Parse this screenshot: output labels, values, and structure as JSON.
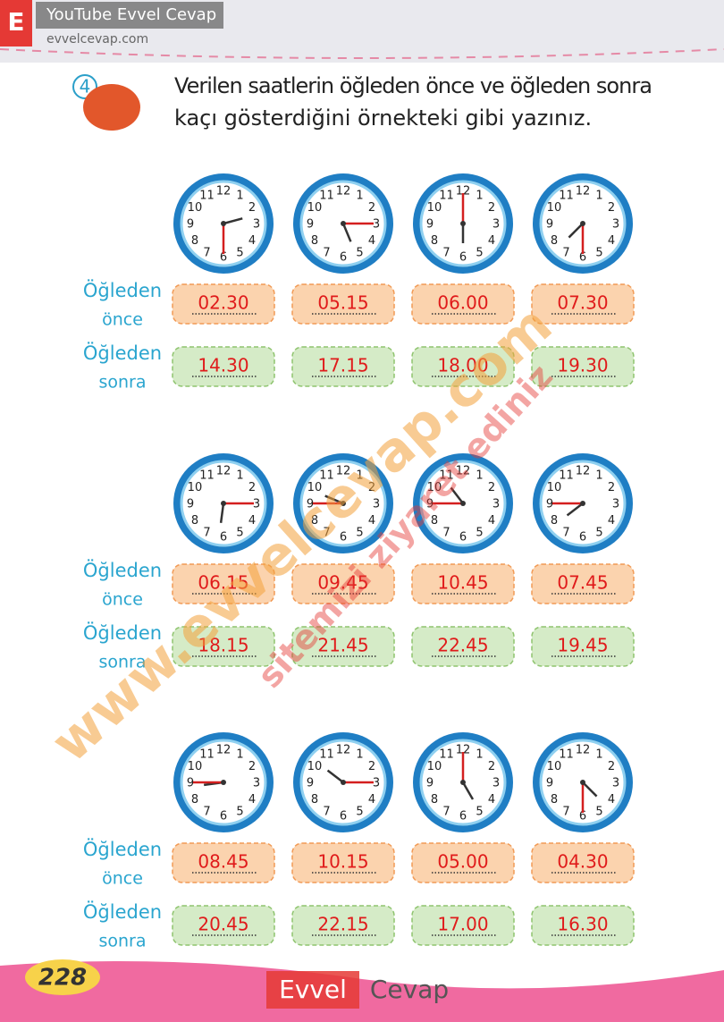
{
  "header": {
    "badge": "E",
    "channel": "YouTube Evvel Cevap",
    "site": "evvelcevap.com"
  },
  "question": {
    "number": "4",
    "text": [
      "Verilen saatlerin öğleden önce ve öğleden sonra",
      "kaçı gösterdiğini örnekteki gibi yazınız."
    ]
  },
  "clock_numbers": [
    "12",
    "1",
    "2",
    "3",
    "4",
    "5",
    "6",
    "7",
    "8",
    "9",
    "10",
    "11"
  ],
  "labels": {
    "before": [
      "Öğleden",
      "önce"
    ],
    "after": [
      "Öğleden",
      "sonra"
    ]
  },
  "groups": [
    {
      "before": [
        "02.30",
        "05.15",
        "06.00",
        "07.30"
      ],
      "after": [
        "14.30",
        "17.15",
        "18.00",
        "19.30"
      ]
    },
    {
      "before": [
        "06.15",
        "09.45",
        "10.45",
        "07.45"
      ],
      "after": [
        "18.15",
        "21.45",
        "22.45",
        "19.45"
      ]
    },
    {
      "before": [
        "08.45",
        "10.15",
        "05.00",
        "04.30"
      ],
      "after": [
        "20.45",
        "22.15",
        "17.00",
        "16.30"
      ]
    }
  ],
  "watermark": [
    "www.evvelcevap.com",
    "sitemizi ziyaret ediniz"
  ],
  "footer": {
    "page": "228",
    "brand": [
      "Evvel",
      "Cevap"
    ]
  }
}
